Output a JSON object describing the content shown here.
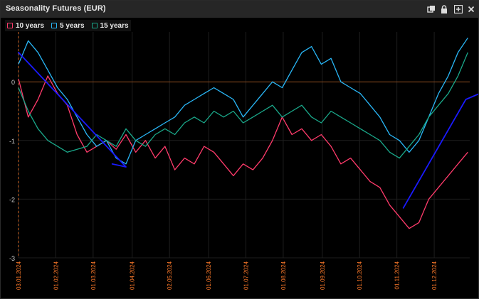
{
  "window": {
    "title": "Seasonality Futures (EUR)",
    "buttons": [
      "restore",
      "lock",
      "add",
      "close"
    ]
  },
  "legend": [
    {
      "label": "10 years",
      "color": "#ff3b6b"
    },
    {
      "label": "5 years",
      "color": "#29b6f6"
    },
    {
      "label": "15 years",
      "color": "#1aa88a"
    }
  ],
  "colors": {
    "zero_line": "#8a4a1e",
    "grid": "#1e1e1e",
    "tick_labels": "#ff7a2a",
    "annotation": "#1a1aff",
    "background": "#000000"
  },
  "chart_data": {
    "type": "line",
    "x_ticks": [
      "03.01.2024",
      "01.02.2024",
      "01.03.2024",
      "01.04.2024",
      "02.05.2024",
      "01.06.2024",
      "01.07.2024",
      "01.08.2024",
      "01.09.2024",
      "01.10.2024",
      "01.11.2024",
      "01.12.2024"
    ],
    "y_ticks": [
      0,
      -1,
      -2,
      -3
    ],
    "ylim": [
      -3,
      0.85
    ],
    "grid": true,
    "series": [
      {
        "name": "10 years",
        "points": [
          [
            0,
            0.05
          ],
          [
            5,
            -0.6
          ],
          [
            10,
            -0.3
          ],
          [
            15,
            0.1
          ],
          [
            20,
            -0.2
          ],
          [
            25,
            -0.4
          ],
          [
            30,
            -0.9
          ],
          [
            35,
            -1.2
          ],
          [
            40,
            -1.1
          ],
          [
            45,
            -1.0
          ],
          [
            50,
            -1.15
          ],
          [
            55,
            -0.9
          ],
          [
            60,
            -1.2
          ],
          [
            65,
            -1.0
          ],
          [
            70,
            -1.3
          ],
          [
            75,
            -1.1
          ],
          [
            80,
            -1.5
          ],
          [
            85,
            -1.3
          ],
          [
            90,
            -1.4
          ],
          [
            95,
            -1.1
          ],
          [
            100,
            -1.2
          ],
          [
            105,
            -1.4
          ],
          [
            110,
            -1.6
          ],
          [
            115,
            -1.4
          ],
          [
            120,
            -1.5
          ],
          [
            125,
            -1.3
          ],
          [
            130,
            -1.0
          ],
          [
            135,
            -0.6
          ],
          [
            140,
            -0.9
          ],
          [
            145,
            -0.8
          ],
          [
            150,
            -1.0
          ],
          [
            155,
            -0.9
          ],
          [
            160,
            -1.1
          ],
          [
            165,
            -1.4
          ],
          [
            170,
            -1.3
          ],
          [
            175,
            -1.5
          ],
          [
            180,
            -1.7
          ],
          [
            185,
            -1.8
          ],
          [
            190,
            -2.1
          ],
          [
            195,
            -2.3
          ],
          [
            200,
            -2.5
          ],
          [
            205,
            -2.4
          ],
          [
            210,
            -2.0
          ],
          [
            215,
            -1.8
          ],
          [
            220,
            -1.6
          ],
          [
            225,
            -1.4
          ],
          [
            230,
            -1.2
          ]
        ]
      },
      {
        "name": "5 years",
        "points": [
          [
            0,
            0.3
          ],
          [
            5,
            0.7
          ],
          [
            10,
            0.5
          ],
          [
            15,
            0.2
          ],
          [
            20,
            -0.1
          ],
          [
            25,
            -0.3
          ],
          [
            30,
            -0.6
          ],
          [
            35,
            -0.9
          ],
          [
            40,
            -1.1
          ],
          [
            45,
            -1.0
          ],
          [
            50,
            -1.3
          ],
          [
            55,
            -1.4
          ],
          [
            60,
            -1.0
          ],
          [
            65,
            -0.9
          ],
          [
            70,
            -0.8
          ],
          [
            75,
            -0.7
          ],
          [
            80,
            -0.6
          ],
          [
            85,
            -0.4
          ],
          [
            90,
            -0.3
          ],
          [
            95,
            -0.2
          ],
          [
            100,
            -0.1
          ],
          [
            105,
            -0.2
          ],
          [
            110,
            -0.3
          ],
          [
            115,
            -0.6
          ],
          [
            120,
            -0.4
          ],
          [
            125,
            -0.2
          ],
          [
            130,
            0.0
          ],
          [
            135,
            -0.1
          ],
          [
            140,
            0.2
          ],
          [
            145,
            0.5
          ],
          [
            150,
            0.6
          ],
          [
            155,
            0.3
          ],
          [
            160,
            0.4
          ],
          [
            165,
            0.0
          ],
          [
            170,
            -0.1
          ],
          [
            175,
            -0.2
          ],
          [
            180,
            -0.4
          ],
          [
            185,
            -0.6
          ],
          [
            190,
            -0.9
          ],
          [
            195,
            -1.0
          ],
          [
            200,
            -1.2
          ],
          [
            205,
            -1.0
          ],
          [
            210,
            -0.6
          ],
          [
            215,
            -0.2
          ],
          [
            220,
            0.1
          ],
          [
            225,
            0.5
          ],
          [
            230,
            0.75
          ]
        ]
      },
      {
        "name": "15 years",
        "points": [
          [
            0,
            -0.1
          ],
          [
            5,
            -0.5
          ],
          [
            10,
            -0.8
          ],
          [
            15,
            -1.0
          ],
          [
            20,
            -1.1
          ],
          [
            25,
            -1.2
          ],
          [
            30,
            -1.15
          ],
          [
            35,
            -1.1
          ],
          [
            40,
            -0.9
          ],
          [
            45,
            -1.0
          ],
          [
            50,
            -1.1
          ],
          [
            55,
            -0.8
          ],
          [
            60,
            -1.0
          ],
          [
            65,
            -1.1
          ],
          [
            70,
            -0.9
          ],
          [
            75,
            -0.8
          ],
          [
            80,
            -0.9
          ],
          [
            85,
            -0.7
          ],
          [
            90,
            -0.6
          ],
          [
            95,
            -0.7
          ],
          [
            100,
            -0.5
          ],
          [
            105,
            -0.6
          ],
          [
            110,
            -0.5
          ],
          [
            115,
            -0.7
          ],
          [
            120,
            -0.6
          ],
          [
            125,
            -0.5
          ],
          [
            130,
            -0.4
          ],
          [
            135,
            -0.6
          ],
          [
            140,
            -0.5
          ],
          [
            145,
            -0.4
          ],
          [
            150,
            -0.6
          ],
          [
            155,
            -0.7
          ],
          [
            160,
            -0.5
          ],
          [
            165,
            -0.6
          ],
          [
            170,
            -0.7
          ],
          [
            175,
            -0.8
          ],
          [
            180,
            -0.9
          ],
          [
            185,
            -1.0
          ],
          [
            190,
            -1.2
          ],
          [
            195,
            -1.3
          ],
          [
            200,
            -1.1
          ],
          [
            205,
            -0.9
          ],
          [
            210,
            -0.6
          ],
          [
            215,
            -0.4
          ],
          [
            220,
            -0.2
          ],
          [
            225,
            0.1
          ],
          [
            230,
            0.5
          ]
        ]
      }
    ]
  }
}
